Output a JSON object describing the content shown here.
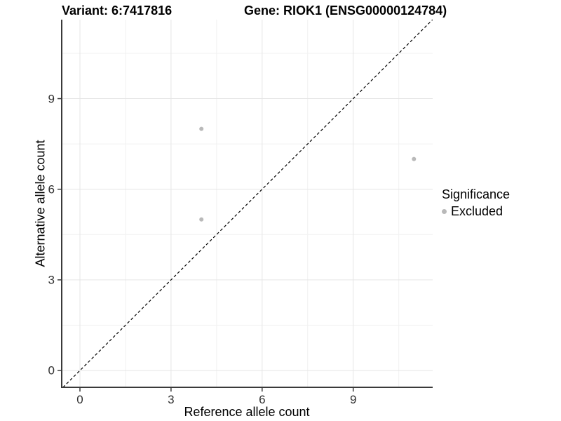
{
  "chart_data": {
    "type": "scatter",
    "title_left": "Variant: 6:7417816",
    "title_right": "Gene: RIOK1 (ENSG00000124784)",
    "xlabel": "Reference allele count",
    "ylabel": "Alternative allele count",
    "x_ticks": [
      0,
      3,
      6,
      9
    ],
    "y_ticks": [
      0,
      3,
      6,
      9
    ],
    "xlim": [
      -0.6,
      11.62
    ],
    "ylim": [
      -0.56,
      11.61
    ],
    "grid": "major and minor gridlines, light grey on white",
    "identity_line": {
      "style": "dashed",
      "color": "#000000",
      "from": [
        -0.56,
        -0.56
      ],
      "to": [
        11.61,
        11.61
      ]
    },
    "legend": {
      "title": "Significance",
      "position": "right",
      "entries": [
        {
          "label": "Excluded",
          "color": "#b9b9b9"
        }
      ]
    },
    "series": [
      {
        "name": "Excluded",
        "color": "#b9b9b9",
        "points": [
          {
            "x": 4,
            "y": 8
          },
          {
            "x": 4,
            "y": 5
          },
          {
            "x": 11,
            "y": 7
          }
        ]
      }
    ],
    "colors": {
      "axis": "#3a3a3a",
      "tick": "#3a3a3a",
      "grid_major": "#e5e5e5",
      "grid_minor": "#f1f1f1",
      "point": "#b9b9b9"
    }
  }
}
